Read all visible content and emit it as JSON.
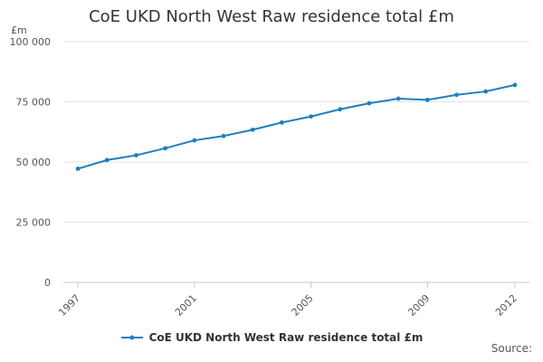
{
  "chart_data": {
    "type": "line",
    "title": "CoE UKD North West Raw residence total £m",
    "ylabel": "£m",
    "xlabel": "",
    "source_label": "Source:",
    "ylim": [
      0,
      100000
    ],
    "y_ticks": [
      0,
      25000,
      50000,
      75000,
      100000
    ],
    "y_tick_labels": [
      "0",
      "25 000",
      "50 000",
      "75 000",
      "100 000"
    ],
    "xlim": [
      1996.5,
      2012.5
    ],
    "x_ticks": [
      1997,
      2001,
      2005,
      2009,
      2012
    ],
    "x_tick_labels": [
      "1997",
      "2001",
      "2005",
      "2009",
      "2012"
    ],
    "grid": true,
    "legend_position": "bottom",
    "series": [
      {
        "name": "CoE UKD North West Raw residence total £m",
        "color": "#1f7fbf",
        "x": [
          1997,
          1998,
          1999,
          2000,
          2001,
          2002,
          2003,
          2004,
          2005,
          2006,
          2007,
          2008,
          2009,
          2010,
          2011,
          2012
        ],
        "values": [
          47200,
          50800,
          52800,
          55700,
          59000,
          60800,
          63400,
          66400,
          68900,
          71900,
          74400,
          76300,
          75800,
          77900,
          79300,
          82000
        ]
      }
    ]
  }
}
